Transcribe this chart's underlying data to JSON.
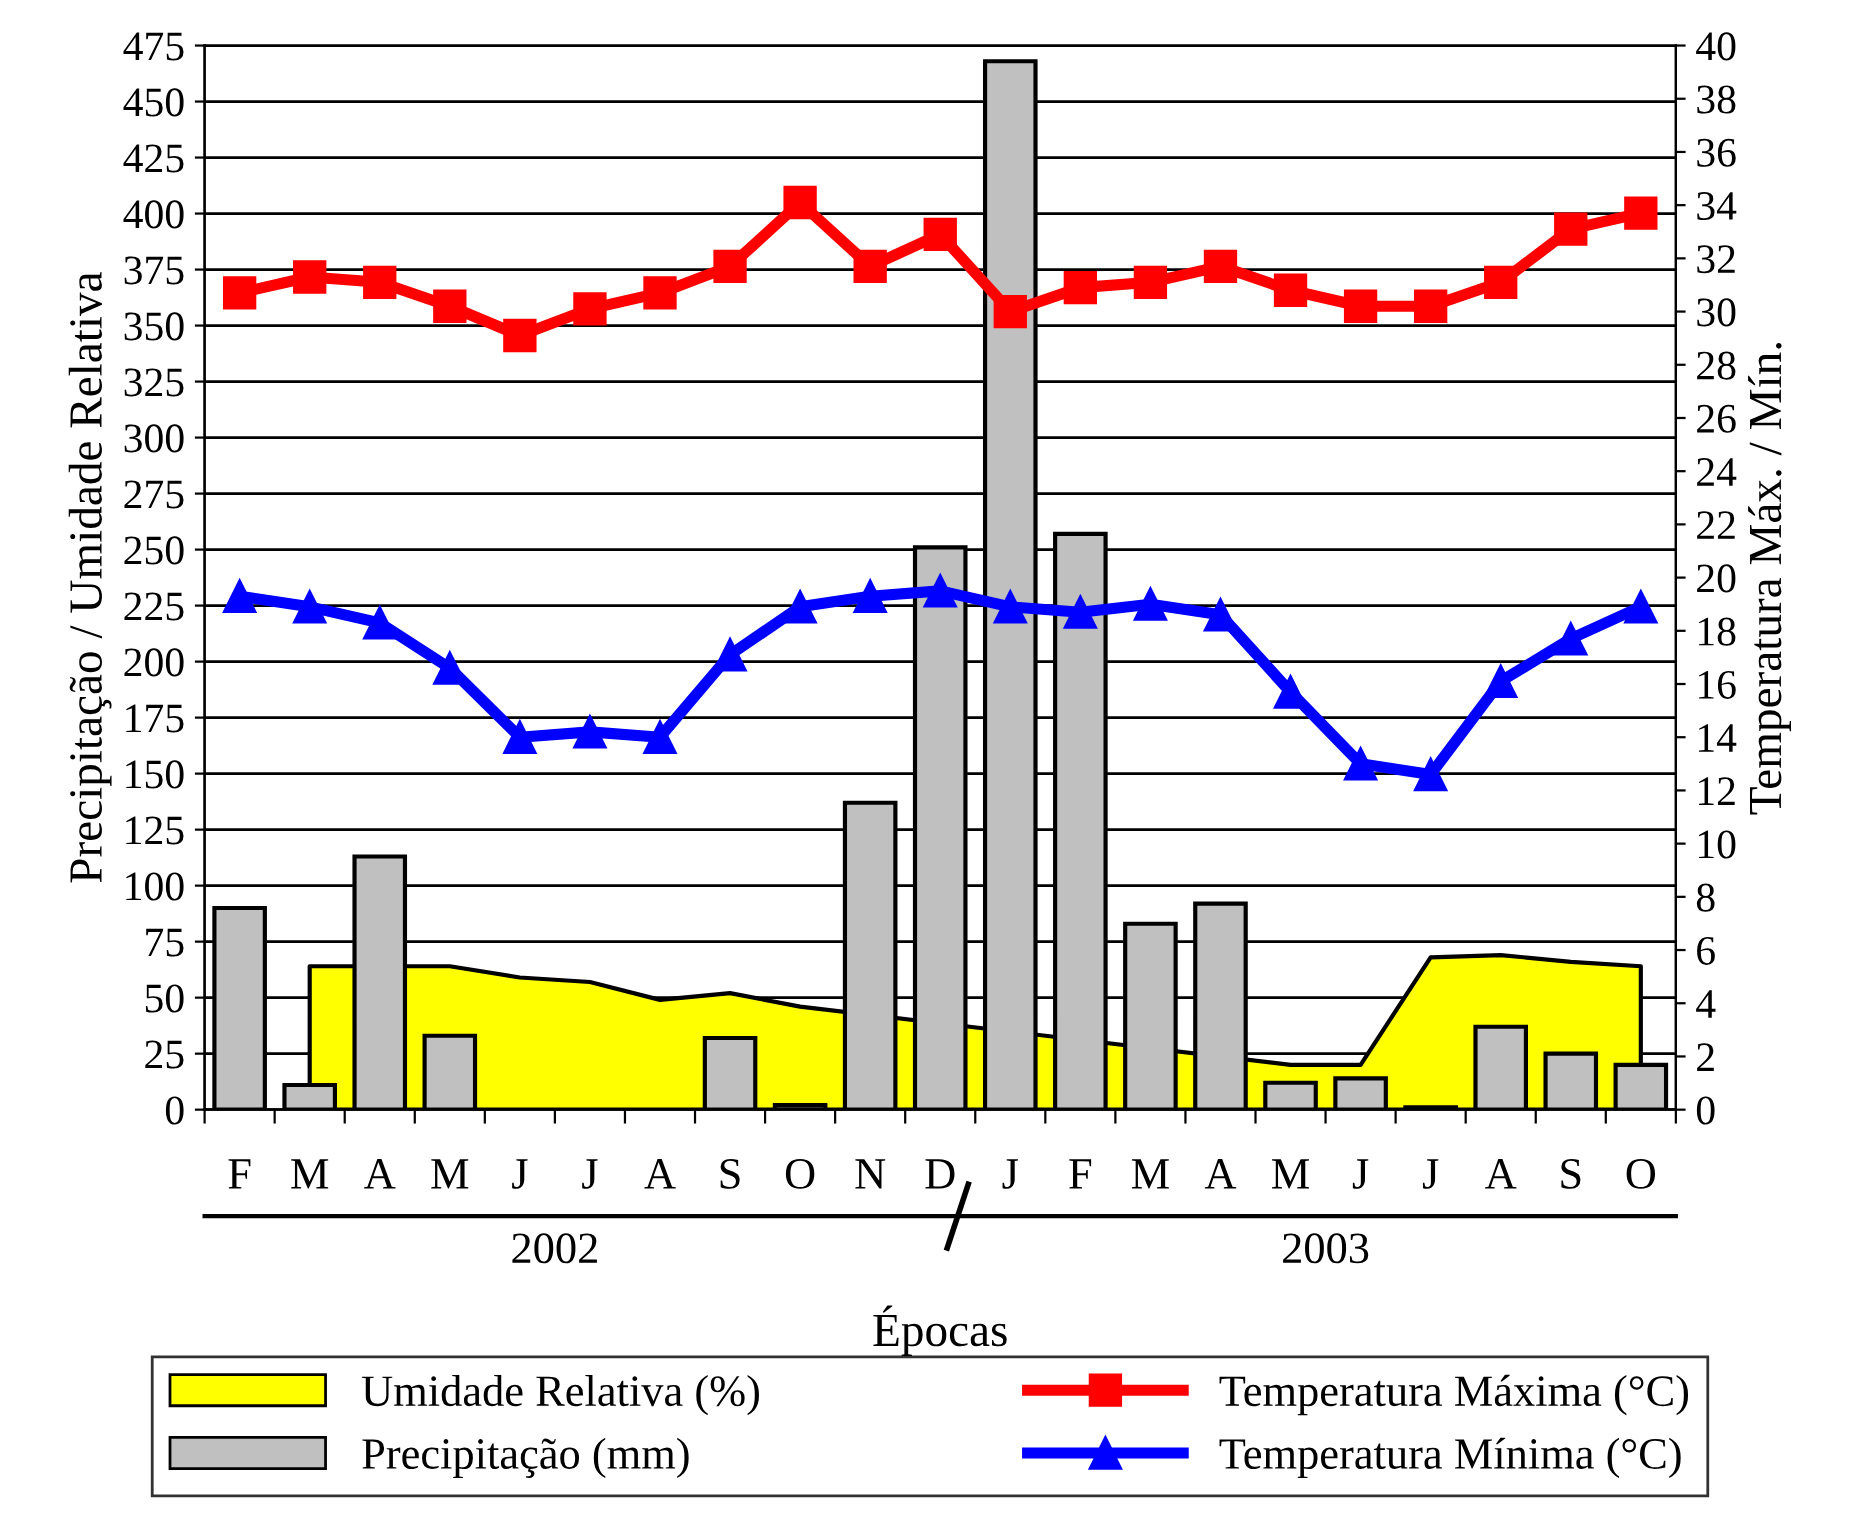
{
  "chart_data": {
    "type": "bar",
    "categories": [
      "F",
      "M",
      "A",
      "M",
      "J",
      "J",
      "A",
      "S",
      "O",
      "N",
      "D",
      "J",
      "F",
      "M",
      "A",
      "M",
      "J",
      "J",
      "A",
      "S",
      "O"
    ],
    "series": [
      {
        "name": "Umidade Relativa (%)",
        "type": "area",
        "color": "#ffff00",
        "values": [
          null,
          64,
          null,
          64,
          59,
          57,
          49,
          52,
          46,
          null,
          null,
          null,
          null,
          null,
          null,
          20,
          20,
          68,
          69,
          66,
          64
        ]
      },
      {
        "name": "Precipitação (mm)",
        "color": "#c0c0c0",
        "values": [
          90,
          11,
          113,
          33,
          0,
          0,
          0,
          32,
          2,
          137,
          251,
          468,
          257,
          83,
          92,
          12,
          14,
          1,
          37,
          25,
          20
        ]
      },
      {
        "name": "Temperatura Máxima (°C)",
        "type": "line",
        "axis": "y2",
        "marker": "square",
        "color": "#ff0000",
        "values": [
          30.7,
          31.3,
          31.1,
          30.2,
          29.1,
          30.1,
          30.7,
          31.7,
          34.1,
          31.7,
          32.9,
          30.0,
          30.9,
          31.1,
          31.7,
          30.8,
          30.2,
          30.2,
          31.1,
          33.1,
          33.7
        ]
      },
      {
        "name": "Temperatura Mínima (°C)",
        "type": "line",
        "axis": "y2",
        "marker": "triangle",
        "color": "#0000ff",
        "values": [
          19.3,
          18.9,
          18.3,
          16.6,
          14.0,
          14.2,
          14.0,
          17.1,
          18.9,
          19.3,
          19.5,
          18.9,
          18.7,
          19.0,
          18.6,
          15.7,
          13.0,
          12.6,
          16.1,
          17.7,
          18.9
        ]
      }
    ],
    "xlabel": "Épocas",
    "ylabel": "Precipitação / Umidade Relativa",
    "y2label": "Temperatura Máx. / Mín.",
    "ylim": [
      0,
      475
    ],
    "yticks": [
      0,
      25,
      50,
      75,
      100,
      125,
      150,
      175,
      200,
      225,
      250,
      275,
      300,
      325,
      350,
      375,
      400,
      425,
      450,
      475
    ],
    "y2lim": [
      0,
      40
    ],
    "y2ticks": [
      0,
      2,
      4,
      6,
      8,
      10,
      12,
      14,
      16,
      18,
      20,
      22,
      24,
      26,
      28,
      30,
      32,
      34,
      36,
      38,
      40
    ],
    "annotations": [
      "2002",
      "2003"
    ],
    "grid": "y",
    "legend": "bottom"
  }
}
